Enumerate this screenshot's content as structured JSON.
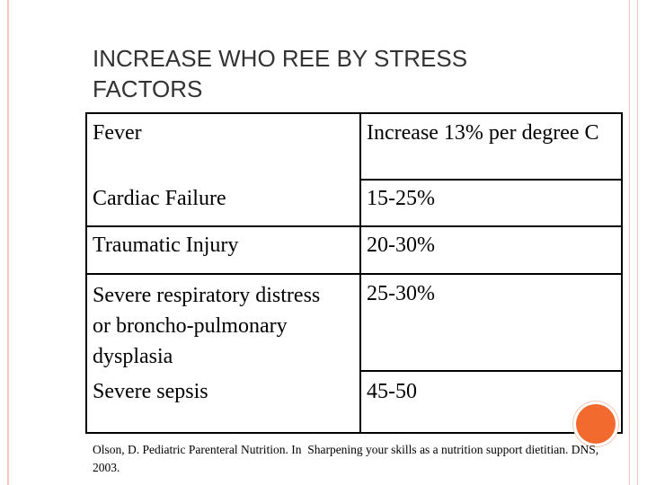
{
  "title": "INCREASE WHO REE BY STRESS FACTORS",
  "table": {
    "rows": [
      [
        "Fever",
        "Increase 13% per degree C"
      ],
      [
        "Cardiac Failure",
        "15-25%"
      ],
      [
        "Traumatic Injury",
        "20-30%"
      ],
      [
        "Severe respiratory distress or broncho-pulmonary dysplasia",
        "25-30%"
      ],
      [
        "Severe sepsis",
        "45-50"
      ]
    ]
  },
  "footnote": "Olson, D. Pediatric Parenteral Nutrition. In  Sharpening your skills as a nutrition support dietitian. DNS, 2003."
}
